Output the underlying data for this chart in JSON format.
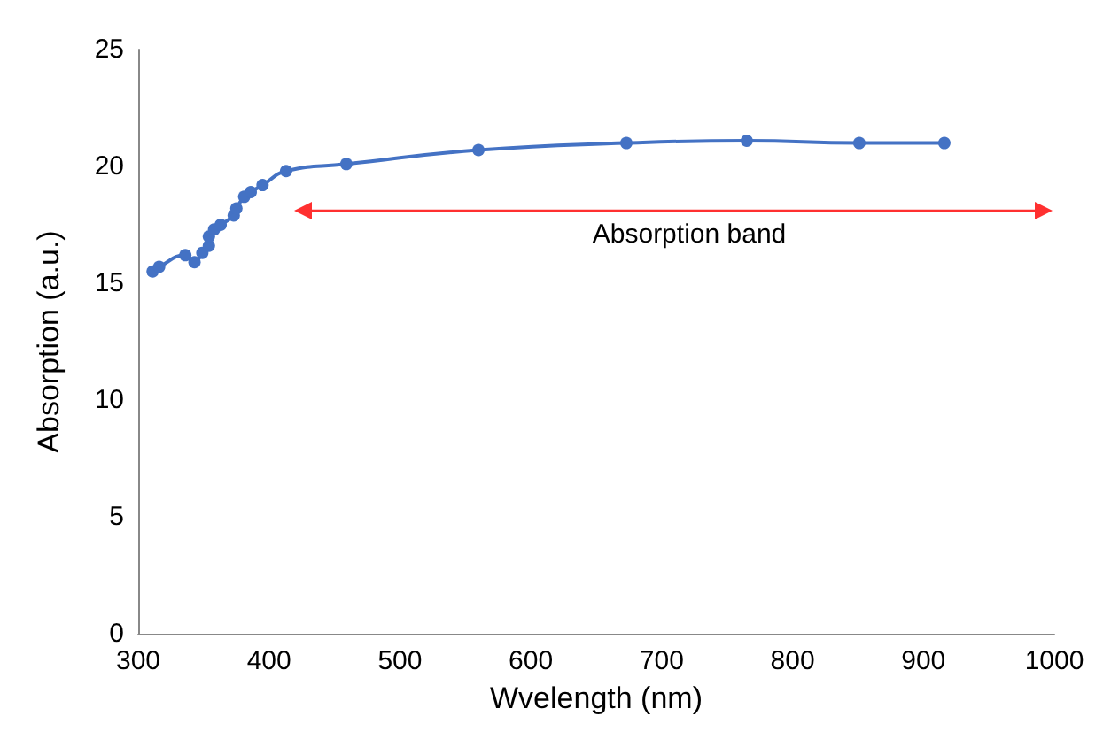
{
  "chart_data": {
    "type": "line",
    "xlabel": "Wvelength (nm)",
    "ylabel": "Absorption (a.u.)",
    "x": [
      311,
      316,
      336,
      343,
      349,
      354,
      354,
      358,
      363,
      373,
      375,
      381,
      386,
      395,
      413,
      459,
      560,
      673,
      765,
      851,
      916
    ],
    "series": [
      {
        "color": "#4472c4",
        "values": [
          15.5,
          15.7,
          16.2,
          15.9,
          16.3,
          16.6,
          17.0,
          17.3,
          17.5,
          17.9,
          18.2,
          18.7,
          18.9,
          19.2,
          19.8,
          20.1,
          20.7,
          21.0,
          21.1,
          21.0,
          21.0
        ]
      }
    ],
    "xlim": [
      300,
      1000
    ],
    "xticks": [
      300,
      400,
      500,
      600,
      700,
      800,
      900,
      1000
    ],
    "ylim": [
      0,
      25
    ],
    "yticks": [
      0,
      5,
      10,
      15,
      20,
      25
    ],
    "grid": false,
    "marker": "circle",
    "line_style": "solid",
    "annotations": [
      "Absorption band"
    ]
  }
}
